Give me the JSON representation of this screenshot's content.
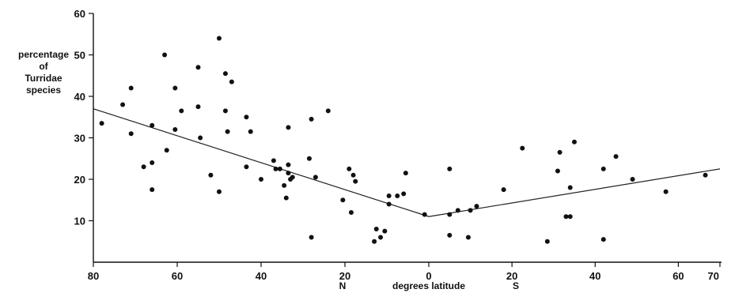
{
  "chart_data": {
    "type": "scatter",
    "ylabel_lines": [
      "percentage",
      "of",
      "Turridae",
      "species"
    ],
    "xlabel": "degrees latitude",
    "x_hemisphere_labels": {
      "north": "N",
      "south": "S"
    },
    "ylim": [
      0,
      60
    ],
    "yticks": [
      10,
      20,
      30,
      40,
      50,
      60
    ],
    "xlim_north": [
      80,
      0
    ],
    "xlim_south": [
      0,
      70
    ],
    "xticks_north": [
      80,
      60,
      40,
      20,
      0
    ],
    "xticks_south": [
      20,
      40,
      60,
      70
    ],
    "grid": false,
    "points_north": [
      {
        "x": 78,
        "y": 33.5
      },
      {
        "x": 73,
        "y": 38
      },
      {
        "x": 71,
        "y": 42
      },
      {
        "x": 71,
        "y": 31
      },
      {
        "x": 68,
        "y": 23
      },
      {
        "x": 66,
        "y": 33
      },
      {
        "x": 66,
        "y": 24
      },
      {
        "x": 66,
        "y": 17.5
      },
      {
        "x": 63,
        "y": 50
      },
      {
        "x": 62.5,
        "y": 27
      },
      {
        "x": 60.5,
        "y": 42
      },
      {
        "x": 60.5,
        "y": 32
      },
      {
        "x": 59,
        "y": 36.5
      },
      {
        "x": 55,
        "y": 47
      },
      {
        "x": 55,
        "y": 37.5
      },
      {
        "x": 54.5,
        "y": 30
      },
      {
        "x": 52,
        "y": 21
      },
      {
        "x": 50,
        "y": 54
      },
      {
        "x": 50,
        "y": 17
      },
      {
        "x": 48.5,
        "y": 45.5
      },
      {
        "x": 48.5,
        "y": 36.5
      },
      {
        "x": 48,
        "y": 31.5
      },
      {
        "x": 47,
        "y": 43.5
      },
      {
        "x": 43.5,
        "y": 35
      },
      {
        "x": 43.5,
        "y": 23
      },
      {
        "x": 42.5,
        "y": 31.5
      },
      {
        "x": 40,
        "y": 20
      },
      {
        "x": 37,
        "y": 24.5
      },
      {
        "x": 36.5,
        "y": 22.5
      },
      {
        "x": 35.5,
        "y": 22.5
      },
      {
        "x": 34.5,
        "y": 18.5
      },
      {
        "x": 34,
        "y": 15.5
      },
      {
        "x": 33.5,
        "y": 32.5
      },
      {
        "x": 33.5,
        "y": 23.5
      },
      {
        "x": 33.5,
        "y": 21.5
      },
      {
        "x": 33,
        "y": 20
      },
      {
        "x": 32.5,
        "y": 20.5
      },
      {
        "x": 28.5,
        "y": 25
      },
      {
        "x": 28,
        "y": 34.5
      },
      {
        "x": 28,
        "y": 6
      },
      {
        "x": 27,
        "y": 20.5
      },
      {
        "x": 24,
        "y": 36.5
      },
      {
        "x": 20.5,
        "y": 15
      },
      {
        "x": 19,
        "y": 22.5
      },
      {
        "x": 18.5,
        "y": 12
      },
      {
        "x": 18,
        "y": 21
      },
      {
        "x": 17.5,
        "y": 19.5
      },
      {
        "x": 13,
        "y": 5
      },
      {
        "x": 12.5,
        "y": 8
      },
      {
        "x": 11.5,
        "y": 6
      },
      {
        "x": 10.5,
        "y": 7.5
      },
      {
        "x": 9.5,
        "y": 14
      },
      {
        "x": 9.5,
        "y": 16
      },
      {
        "x": 7.5,
        "y": 16
      },
      {
        "x": 6,
        "y": 16.5
      },
      {
        "x": 5.5,
        "y": 21.5
      },
      {
        "x": 1,
        "y": 11.5
      }
    ],
    "points_south": [
      {
        "x": 5,
        "y": 6.5
      },
      {
        "x": 5,
        "y": 22.5
      },
      {
        "x": 5,
        "y": 11.5
      },
      {
        "x": 7,
        "y": 12.5
      },
      {
        "x": 9.5,
        "y": 6
      },
      {
        "x": 10,
        "y": 12.5
      },
      {
        "x": 11.5,
        "y": 13.5
      },
      {
        "x": 18,
        "y": 17.5
      },
      {
        "x": 22.5,
        "y": 27.5
      },
      {
        "x": 28.5,
        "y": 5
      },
      {
        "x": 31,
        "y": 22
      },
      {
        "x": 31.5,
        "y": 26.5
      },
      {
        "x": 33,
        "y": 11
      },
      {
        "x": 34,
        "y": 11
      },
      {
        "x": 34,
        "y": 18
      },
      {
        "x": 35,
        "y": 29
      },
      {
        "x": 42,
        "y": 22.5
      },
      {
        "x": 42,
        "y": 5.5
      },
      {
        "x": 45,
        "y": 25.5
      },
      {
        "x": 49,
        "y": 20
      },
      {
        "x": 57,
        "y": 17
      },
      {
        "x": 66.5,
        "y": 21
      }
    ],
    "trend_north": [
      {
        "x": 80,
        "y": 37
      },
      {
        "x": 0,
        "y": 11
      }
    ],
    "trend_south": [
      {
        "x": 0,
        "y": 11
      },
      {
        "x": 70,
        "y": 22.5
      }
    ]
  }
}
